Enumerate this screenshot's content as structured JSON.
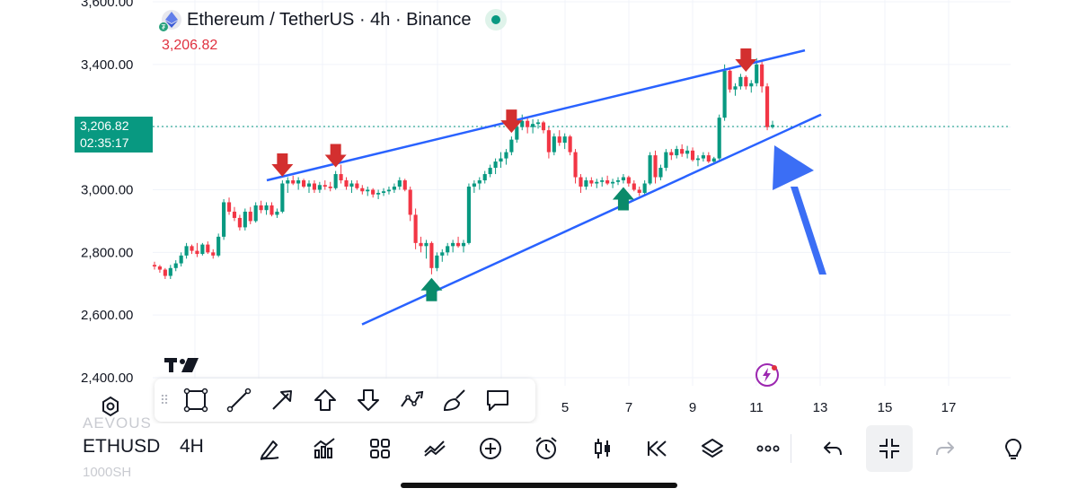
{
  "legend": {
    "title": "Ethereum / TetherUS · 4h · Binance",
    "last_price": "3,206.82"
  },
  "price_tag": {
    "price": "3,206.82",
    "countdown": "02:35:17"
  },
  "colors": {
    "up": "#089981",
    "down": "#f23645",
    "trendline": "#2962ff",
    "arrow_down": "#d32f2f",
    "arrow_up": "#0a8a6a",
    "pointer_arrow": "#3b6ef5"
  },
  "y_axis": {
    "ticks": [
      "3,600.00",
      "3,400.00",
      "3,200.00",
      "3,000.00",
      "2,800.00",
      "2,600.00",
      "2,400.00"
    ]
  },
  "x_axis": {
    "ticks": [
      "5",
      "7",
      "9",
      "11",
      "13",
      "15",
      "17"
    ]
  },
  "chart_data": {
    "type": "candlestick",
    "title": "Ethereum / TetherUS · 4h · Binance",
    "ylim": [
      2350,
      3600
    ],
    "last_price": 3206.82,
    "candles": [
      [
        2760,
        2770,
        2745,
        2755
      ],
      [
        2755,
        2760,
        2735,
        2745
      ],
      [
        2745,
        2750,
        2715,
        2725
      ],
      [
        2725,
        2760,
        2715,
        2750
      ],
      [
        2750,
        2775,
        2740,
        2765
      ],
      [
        2765,
        2800,
        2755,
        2790
      ],
      [
        2790,
        2830,
        2780,
        2820
      ],
      [
        2820,
        2825,
        2795,
        2805
      ],
      [
        2805,
        2830,
        2785,
        2795
      ],
      [
        2795,
        2830,
        2790,
        2825
      ],
      [
        2825,
        2835,
        2795,
        2800
      ],
      [
        2800,
        2810,
        2780,
        2790
      ],
      [
        2790,
        2860,
        2785,
        2850
      ],
      [
        2850,
        2970,
        2840,
        2960
      ],
      [
        2960,
        2975,
        2920,
        2930
      ],
      [
        2930,
        2945,
        2900,
        2910
      ],
      [
        2910,
        2920,
        2870,
        2880
      ],
      [
        2880,
        2940,
        2870,
        2930
      ],
      [
        2930,
        2945,
        2890,
        2900
      ],
      [
        2900,
        2960,
        2895,
        2950
      ],
      [
        2950,
        2965,
        2925,
        2935
      ],
      [
        2935,
        2960,
        2920,
        2950
      ],
      [
        2950,
        2960,
        2915,
        2920
      ],
      [
        2920,
        2940,
        2910,
        2930
      ],
      [
        2930,
        3030,
        2925,
        3020
      ],
      [
        3020,
        3040,
        2990,
        3030
      ],
      [
        3030,
        3045,
        3015,
        3020
      ],
      [
        3020,
        3040,
        3000,
        3030
      ],
      [
        3030,
        3035,
        3005,
        3010
      ],
      [
        3010,
        3030,
        2990,
        3020
      ],
      [
        3020,
        3030,
        2990,
        3000
      ],
      [
        3000,
        3025,
        2990,
        3015
      ],
      [
        3015,
        3030,
        3000,
        3010
      ],
      [
        3010,
        3025,
        2995,
        3005
      ],
      [
        3005,
        3060,
        3000,
        3050
      ],
      [
        3050,
        3080,
        3020,
        3030
      ],
      [
        3030,
        3040,
        3000,
        3010
      ],
      [
        3010,
        3030,
        2990,
        3020
      ],
      [
        3020,
        3030,
        3000,
        3005
      ],
      [
        3005,
        3015,
        2985,
        2995
      ],
      [
        2995,
        3010,
        2980,
        3000
      ],
      [
        3000,
        3005,
        2975,
        2985
      ],
      [
        2985,
        3000,
        2970,
        2990
      ],
      [
        2990,
        3005,
        2980,
        2995
      ],
      [
        2995,
        3010,
        2985,
        3000
      ],
      [
        3000,
        3020,
        2990,
        3010
      ],
      [
        3010,
        3040,
        3000,
        3030
      ],
      [
        3030,
        3035,
        2995,
        3000
      ],
      [
        3000,
        3010,
        2900,
        2920
      ],
      [
        2920,
        2940,
        2810,
        2830
      ],
      [
        2830,
        2850,
        2800,
        2820
      ],
      [
        2820,
        2840,
        2780,
        2830
      ],
      [
        2830,
        2835,
        2730,
        2750
      ],
      [
        2750,
        2800,
        2740,
        2790
      ],
      [
        2790,
        2810,
        2770,
        2800
      ],
      [
        2800,
        2830,
        2790,
        2820
      ],
      [
        2820,
        2840,
        2800,
        2830
      ],
      [
        2830,
        2850,
        2815,
        2820
      ],
      [
        2820,
        2840,
        2800,
        2830
      ],
      [
        2830,
        3020,
        2825,
        3010
      ],
      [
        3010,
        3030,
        2990,
        3020
      ],
      [
        3020,
        3040,
        3000,
        3030
      ],
      [
        3030,
        3060,
        3020,
        3050
      ],
      [
        3050,
        3080,
        3040,
        3070
      ],
      [
        3070,
        3100,
        3050,
        3090
      ],
      [
        3090,
        3120,
        3070,
        3100
      ],
      [
        3100,
        3130,
        3080,
        3120
      ],
      [
        3120,
        3170,
        3110,
        3160
      ],
      [
        3160,
        3210,
        3150,
        3200
      ],
      [
        3200,
        3240,
        3190,
        3220
      ],
      [
        3220,
        3230,
        3180,
        3200
      ],
      [
        3200,
        3225,
        3180,
        3210
      ],
      [
        3210,
        3225,
        3195,
        3215
      ],
      [
        3215,
        3220,
        3180,
        3190
      ],
      [
        3190,
        3200,
        3100,
        3120
      ],
      [
        3120,
        3180,
        3110,
        3170
      ],
      [
        3170,
        3190,
        3140,
        3150
      ],
      [
        3150,
        3180,
        3130,
        3170
      ],
      [
        3170,
        3175,
        3110,
        3120
      ],
      [
        3120,
        3130,
        3020,
        3040
      ],
      [
        3040,
        3050,
        2990,
        3010
      ],
      [
        3010,
        3040,
        3000,
        3030
      ],
      [
        3030,
        3040,
        3010,
        3020
      ],
      [
        3020,
        3035,
        3005,
        3025
      ],
      [
        3025,
        3040,
        3010,
        3030
      ],
      [
        3030,
        3045,
        3015,
        3020
      ],
      [
        3020,
        3035,
        3005,
        3025
      ],
      [
        3025,
        3040,
        3015,
        3030
      ],
      [
        3030,
        3050,
        3020,
        3040
      ],
      [
        3040,
        3045,
        3010,
        3020
      ],
      [
        3020,
        3030,
        2995,
        3000
      ],
      [
        3000,
        3010,
        2980,
        2990
      ],
      [
        2990,
        3030,
        2985,
        3020
      ],
      [
        3020,
        3120,
        3015,
        3110
      ],
      [
        3110,
        3125,
        3020,
        3040
      ],
      [
        3040,
        3080,
        3030,
        3070
      ],
      [
        3070,
        3130,
        3060,
        3120
      ],
      [
        3120,
        3130,
        3095,
        3110
      ],
      [
        3110,
        3140,
        3100,
        3130
      ],
      [
        3130,
        3145,
        3105,
        3115
      ],
      [
        3115,
        3140,
        3100,
        3125
      ],
      [
        3125,
        3135,
        3090,
        3095
      ],
      [
        3095,
        3110,
        3075,
        3100
      ],
      [
        3100,
        3120,
        3090,
        3110
      ],
      [
        3110,
        3120,
        3085,
        3090
      ],
      [
        3090,
        3105,
        3080,
        3100
      ],
      [
        3100,
        3240,
        3095,
        3230
      ],
      [
        3230,
        3400,
        3220,
        3380
      ],
      [
        3380,
        3390,
        3310,
        3320
      ],
      [
        3320,
        3340,
        3300,
        3330
      ],
      [
        3330,
        3370,
        3320,
        3360
      ],
      [
        3360,
        3365,
        3320,
        3330
      ],
      [
        3330,
        3350,
        3310,
        3340
      ],
      [
        3340,
        3420,
        3330,
        3400
      ],
      [
        3400,
        3410,
        3310,
        3330
      ],
      [
        3330,
        3340,
        3190,
        3200
      ],
      [
        3200,
        3220,
        3195,
        3206.82
      ]
    ],
    "trendlines": [
      {
        "name": "resistance",
        "from": [
          0.185,
          3030
        ],
        "to": [
          1.0,
          3450
        ]
      },
      {
        "name": "support",
        "from": [
          0.35,
          2570
        ],
        "to": [
          1.0,
          3245
        ]
      }
    ],
    "markers": [
      {
        "type": "down",
        "index": 24
      },
      {
        "type": "down",
        "index": 34
      },
      {
        "type": "down",
        "index": 67
      },
      {
        "type": "down",
        "index": 111
      },
      {
        "type": "up",
        "index": 52
      },
      {
        "type": "up",
        "index": 88
      }
    ]
  },
  "drawing_tools": [
    {
      "name": "rectangle-tool-icon"
    },
    {
      "name": "line-tool-icon"
    },
    {
      "name": "arrow-tool-icon"
    },
    {
      "name": "arrow-up-marker-tool-icon"
    },
    {
      "name": "arrow-down-marker-tool-icon"
    },
    {
      "name": "path-tool-icon"
    },
    {
      "name": "brush-tool-icon"
    },
    {
      "name": "callout-tool-icon"
    }
  ],
  "bottom_bar": {
    "symbol": "ETHUSD",
    "interval": "4H",
    "ghost_top": "AEVOUS",
    "ghost_bottom": "1000SH"
  }
}
